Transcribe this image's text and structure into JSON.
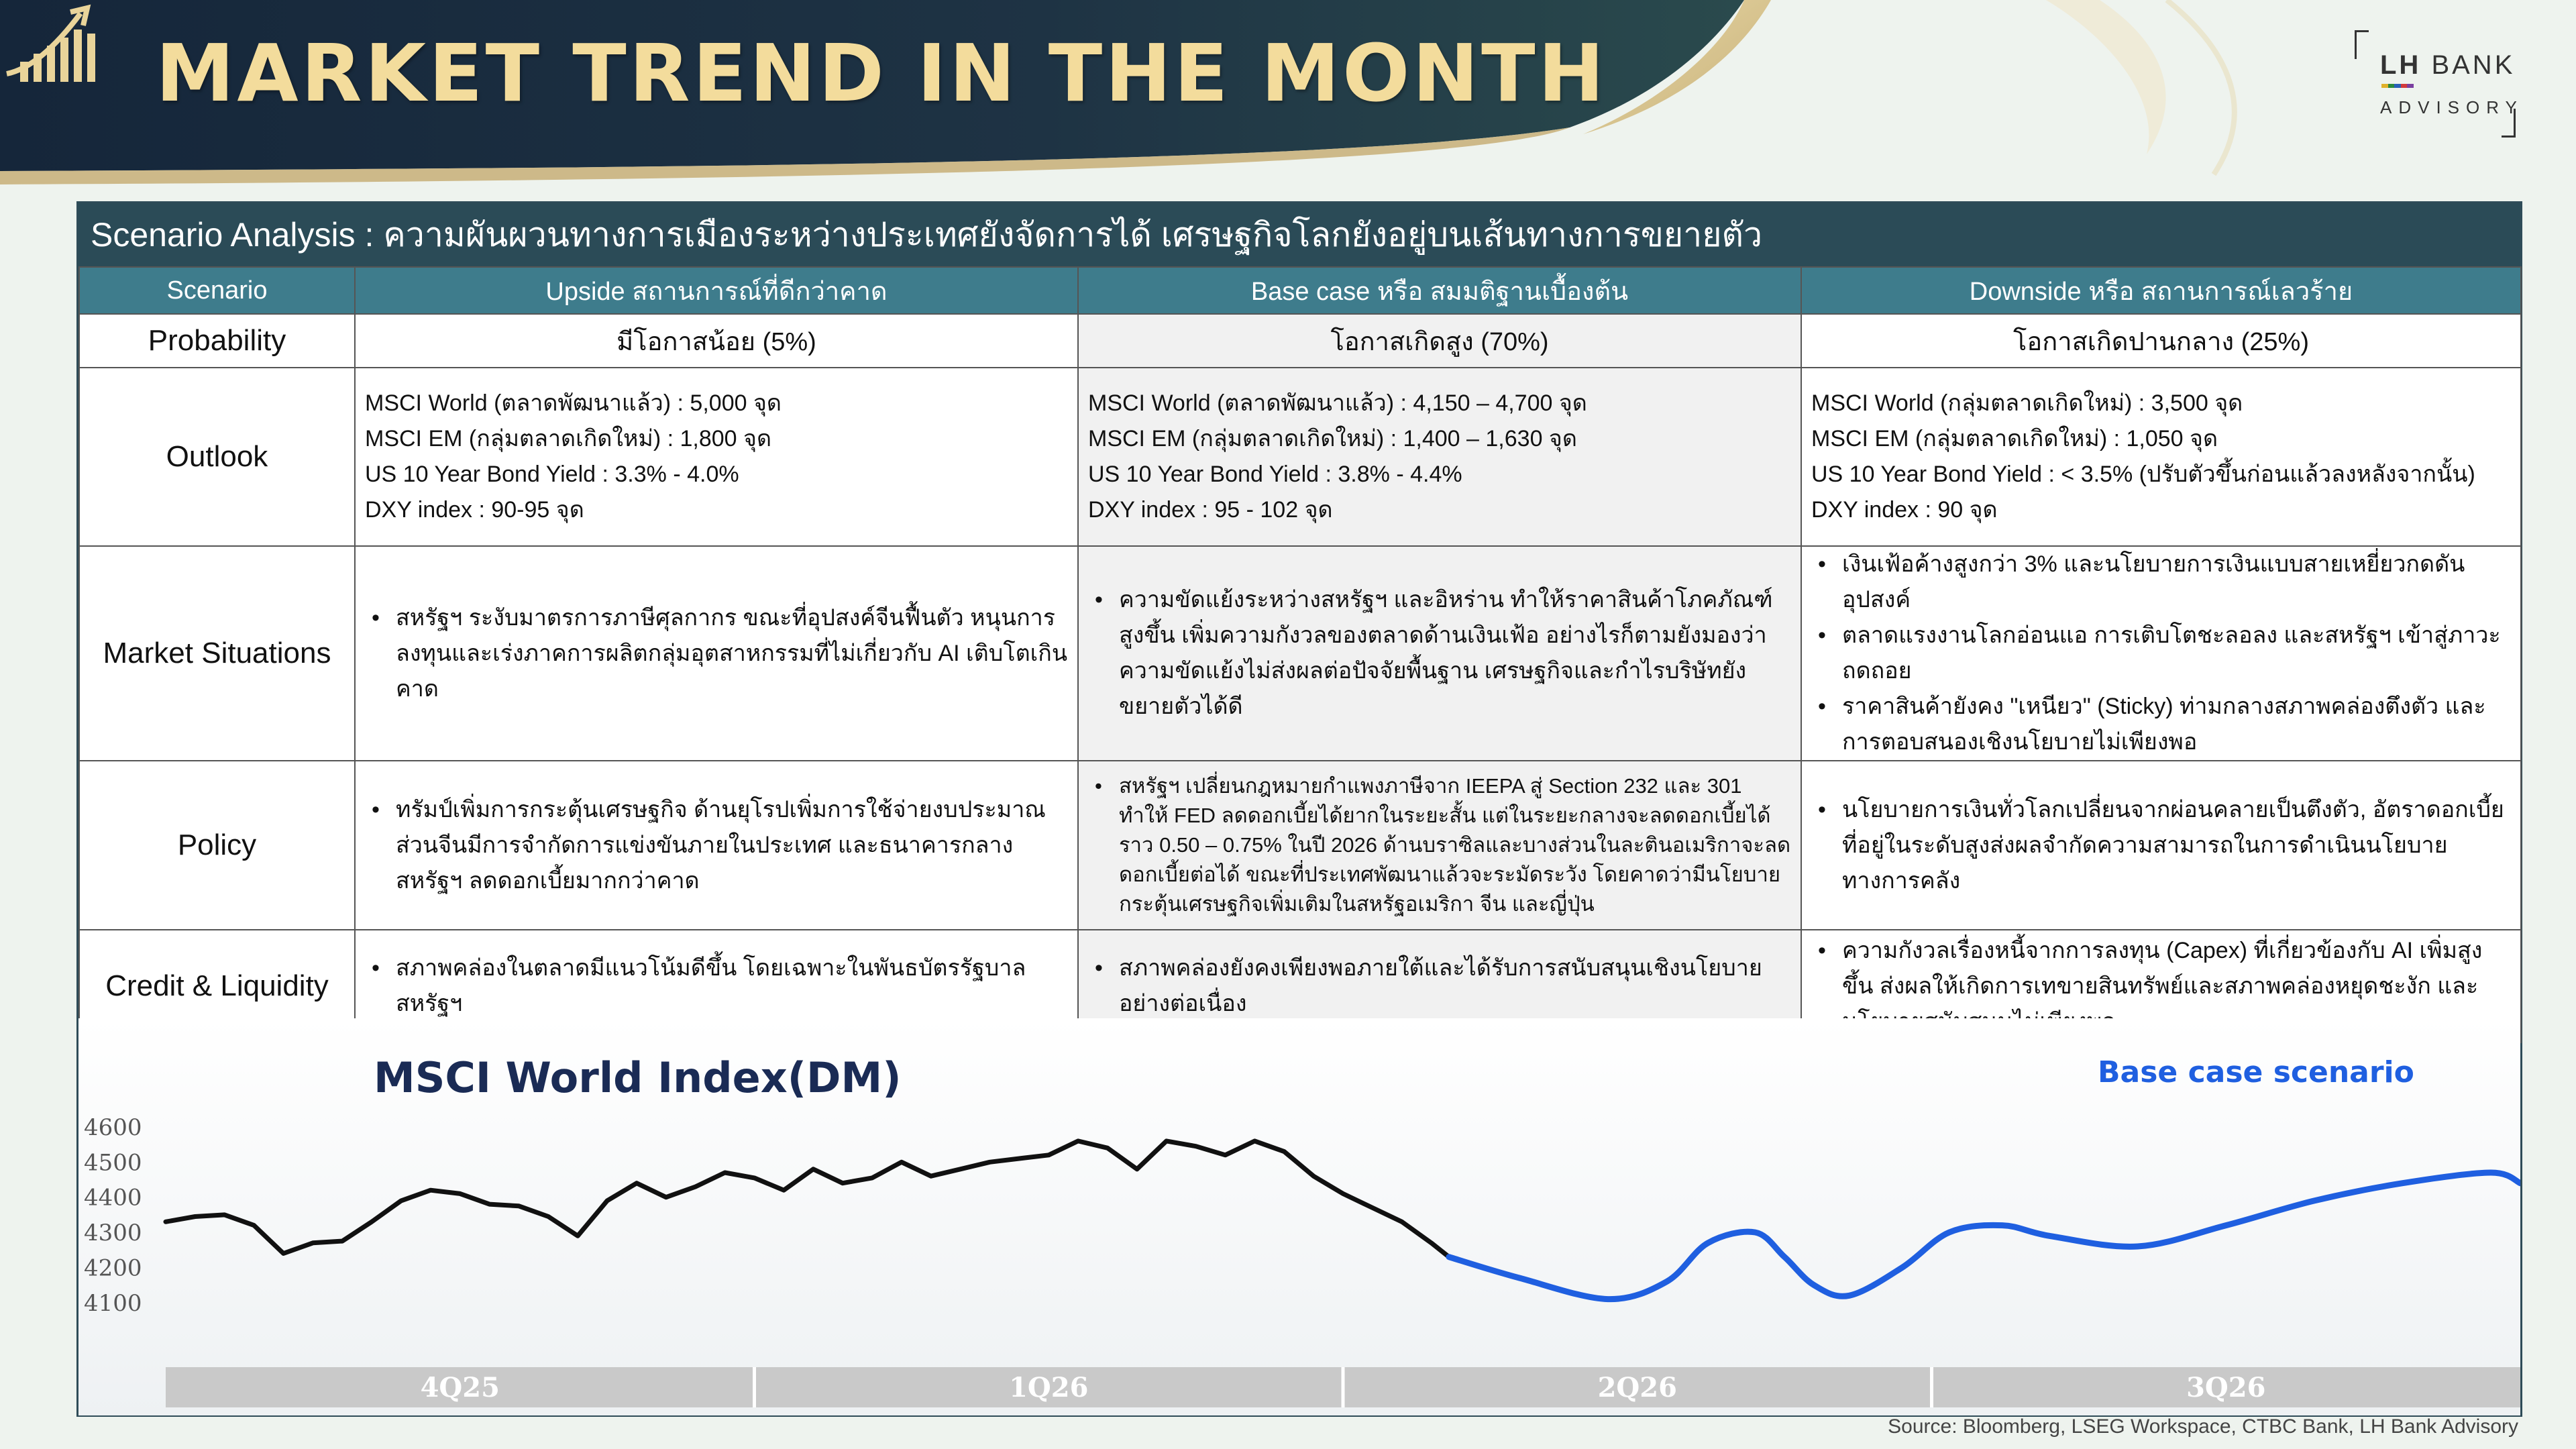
{
  "header": {
    "title": "MARKET TREND IN THE MONTH",
    "brand_name_bold": "LH",
    "brand_name_rest": " BANK",
    "brand_sub": "ADVISORY",
    "title_color": "#f3dc9c",
    "navy": "#1c2e3d"
  },
  "table": {
    "title": "Scenario Analysis : ความผันผวนทางการเมืองระหว่างประเทศยังจัดการได้ เศรษฐกิจโลกยังอยู่บนเส้นทางการขยายตัว",
    "columns": [
      "Scenario",
      "Upside สถานการณ์ที่ดีกว่าคาด",
      "Base case หรือ สมมติฐานเบื้องต้น",
      "Downside หรือ สถานการณ์เลวร้าย"
    ],
    "rows": {
      "probability": {
        "label": "Probability",
        "upside": "มีโอกาสน้อย (5%)",
        "base": "โอกาสเกิดสูง (70%)",
        "downside": "โอกาสเกิดปานกลาง (25%)"
      },
      "outlook": {
        "label": "Outlook",
        "upside": [
          "MSCI World (ตลาดพัฒนาแล้ว) : 5,000 จุด",
          "MSCI EM (กลุ่มตลาดเกิดใหม่) : 1,800 จุด",
          "US 10 Year Bond Yield : 3.3% - 4.0%",
          "DXY index : 90-95 จุด"
        ],
        "base": [
          "MSCI World (ตลาดพัฒนาแล้ว) : 4,150 – 4,700 จุด",
          "MSCI EM (กลุ่มตลาดเกิดใหม่) : 1,400 – 1,630 จุด",
          "US 10 Year Bond Yield : 3.8% - 4.4%",
          "DXY index : 95 - 102 จุด"
        ],
        "downside": [
          "MSCI World (กลุ่มตลาดเกิดใหม่) : 3,500 จุด",
          "MSCI EM (กลุ่มตลาดเกิดใหม่) : 1,050 จุด",
          "US 10 Year Bond Yield : < 3.5% (ปรับตัวขึ้นก่อนแล้วลงหลังจากนั้น)",
          "DXY index :  90 จุด"
        ]
      },
      "market": {
        "label": "Market Situations",
        "upside": [
          "สหรัฐฯ ระงับมาตรการภาษีศุลกากร ขณะที่อุปสงค์จีนฟื้นตัว หนุนการลงทุนและเร่งภาคการผลิตกลุ่มอุตสาหกรรมที่ไม่เกี่ยวกับ AI   เติบโตเกินคาด"
        ],
        "base": [
          "ความขัดแย้งระหว่างสหรัฐฯ และอิหร่าน ทำให้ราคาสินค้าโภคภัณฑ์สูงขึ้น เพิ่มความกังวลของตลาดด้านเงินเฟ้อ อย่างไรก็ตามยังมองว่าความขัดแย้งไม่ส่งผลต่อปัจจัยพื้นฐาน เศรษฐกิจและกำไรบริษัทยังขยายตัวได้ดี"
        ],
        "downside": [
          "เงินเฟ้อค้างสูงกว่า 3% และนโยบายการเงินแบบสายเหยี่ยวกดดันอุปสงค์",
          "ตลาดแรงงานโลกอ่อนแอ การเติบโตชะลอลง และสหรัฐฯ เข้าสู่ภาวะถดถอย",
          "ราคาสินค้ายังคง \"เหนียว\" (Sticky)   ท่ามกลางสภาพคล่องตึงตัว และการตอบสนองเชิงนโยบายไม่เพียงพอ"
        ]
      },
      "policy": {
        "label": "Policy",
        "upside": [
          "ทรัมป์เพิ่มการกระตุ้นเศรษฐกิจ ด้านยุโรปเพิ่มการใช้จ่ายงบประมาณ ส่วนจีนมีการจำกัดการแข่งขันภายในประเทศ และธนาคารกลางสหรัฐฯ ลดดอกเบี้ยมากกว่าคาด"
        ],
        "base": [
          "สหรัฐฯ เปลี่ยนกฎหมายกำแพงภาษีจาก IEEPA สู่ Section 232 และ 301 ทำให้  FED  ลดดอกเบี้ยได้ยากในระยะสั้น  แต่ในระยะกลางจะลดดอกเบี้ยได้ราว 0.50 – 0.75% ในปี 2026 ด้านบราซิลและบางส่วนในละตินอเมริกาจะลดดอกเบี้ยต่อได้     ขณะที่ประเทศพัฒนาแล้วจะระมัดระวัง     โดยคาดว่ามีนโยบายกระตุ้นเศรษฐกิจเพิ่มเติมในสหรัฐอเมริกา จีน และญี่ปุ่น"
        ],
        "downside": [
          "นโยบายการเงินทั่วโลกเปลี่ยนจากผ่อนคลายเป็นตึงตัว, อัตราดอกเบี้ยที่อยู่ในระดับสูงส่งผลจำกัดความสามารถในการดำเนินนโยบายทางการคลัง"
        ]
      },
      "credit": {
        "label": "Credit  &  Liquidity",
        "upside": [
          "สภาพคล่องในตลาดมีแนวโน้มดีขึ้น โดยเฉพาะในพันธบัตรรัฐบาลสหรัฐฯ"
        ],
        "base": [
          "สภาพคล่องยังคงเพียงพอภายใต้และได้รับการสนับสนุนเชิงนโยบายอย่างต่อเนื่อง"
        ],
        "downside": [
          "ความกังวลเรื่องหนี้จากการลงทุน (Capex) ที่เกี่ยวข้องกับ AI เพิ่มสูงขึ้น ส่งผลให้เกิดการเทขายสินทรัพย์และสภาพคล่องหยุดชะงัก และนโยบายสนับสนุนไม่เพียงพอ"
        ]
      }
    }
  },
  "chart_data": {
    "type": "line",
    "title": "MSCI World Index(DM)",
    "annotation": "Base case scenario",
    "ylabel": "",
    "y_ticks": [
      4600,
      4500,
      4400,
      4300,
      4200,
      4100
    ],
    "ylim": [
      4050,
      4680
    ],
    "x_period_labels": [
      "4Q25",
      "1Q26",
      "2Q26",
      "3Q26"
    ],
    "x_range": [
      0,
      4
    ],
    "grid": false,
    "series": [
      {
        "color": "#111111",
        "x": [
          0,
          0.05,
          0.1,
          0.15,
          0.2,
          0.25,
          0.3,
          0.35,
          0.4,
          0.45,
          0.5,
          0.55,
          0.6,
          0.65,
          0.7,
          0.75,
          0.8,
          0.85,
          0.9,
          0.95,
          1.0,
          1.05,
          1.1,
          1.15,
          1.2,
          1.25,
          1.3,
          1.35,
          1.4,
          1.45,
          1.5,
          1.55,
          1.6,
          1.65,
          1.7,
          1.75,
          1.8,
          1.85,
          1.9,
          1.95,
          2.0,
          2.05,
          2.1,
          2.15,
          2.18
        ],
        "y": [
          4330,
          4345,
          4350,
          4320,
          4240,
          4270,
          4275,
          4330,
          4390,
          4420,
          4410,
          4380,
          4375,
          4345,
          4290,
          4390,
          4440,
          4400,
          4430,
          4470,
          4455,
          4420,
          4480,
          4440,
          4455,
          4500,
          4460,
          4480,
          4500,
          4510,
          4520,
          4560,
          4540,
          4480,
          4560,
          4545,
          4520,
          4560,
          4530,
          4460,
          4410,
          4370,
          4330,
          4270,
          4230
        ]
      },
      {
        "color": "#1f5fe0",
        "x": [
          2.18,
          2.3,
          2.45,
          2.55,
          2.62,
          2.7,
          2.75,
          2.8,
          2.86,
          2.95,
          3.03,
          3.12,
          3.2,
          3.35,
          3.5,
          3.65,
          3.8,
          3.95,
          4.0
        ],
        "y": [
          4230,
          4170,
          4110,
          4160,
          4270,
          4300,
          4230,
          4150,
          4120,
          4200,
          4300,
          4320,
          4290,
          4260,
          4320,
          4390,
          4440,
          4470,
          4440
        ]
      }
    ]
  },
  "source": "Source: Bloomberg, LSEG Workspace, CTBC Bank, LH Bank Advisory"
}
